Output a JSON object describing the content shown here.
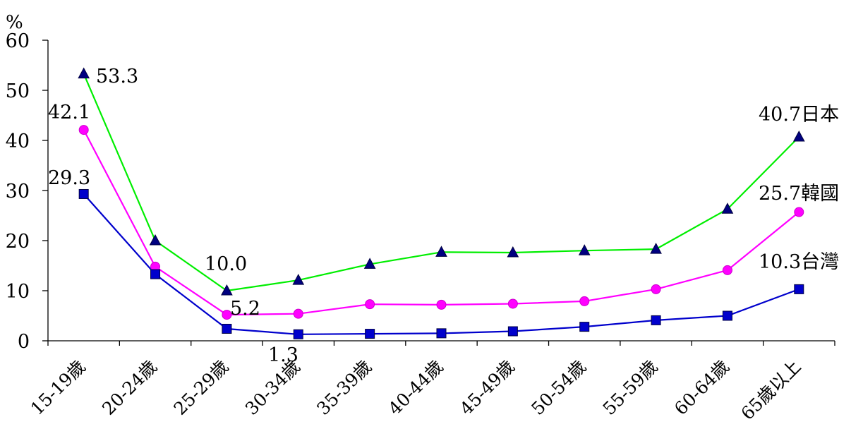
{
  "chart_data": {
    "type": "line",
    "title": "",
    "xlabel": "",
    "ylabel": "",
    "y_unit": "%",
    "ylim": [
      0,
      60
    ],
    "yticks": [
      "0",
      "10",
      "20",
      "30",
      "40",
      "50",
      "60"
    ],
    "categories": [
      "15-19歲",
      "20-24歲",
      "25-29歲",
      "30-34歲",
      "35-39歲",
      "40-44歲",
      "45-49歲",
      "50-54歲",
      "55-59歲",
      "60-64歲",
      "65歲以上"
    ],
    "grid": false,
    "legend": "none",
    "series": [
      {
        "name": "日本",
        "color": "#00ee00",
        "marker": "triangle",
        "marker_color": "#000080",
        "values": [
          53.3,
          20.0,
          10.0,
          12.1,
          15.3,
          17.7,
          17.6,
          18.0,
          18.3,
          26.3,
          40.7
        ]
      },
      {
        "name": "韓國",
        "color": "#ff00ff",
        "marker": "circle",
        "marker_color": "#ff00ff",
        "values": [
          42.1,
          14.8,
          5.2,
          5.4,
          7.3,
          7.2,
          7.4,
          7.9,
          10.3,
          14.1,
          25.7
        ]
      },
      {
        "name": "台灣",
        "color": "#0000cc",
        "marker": "square",
        "marker_color": "#0000cc",
        "values": [
          29.3,
          13.3,
          2.4,
          1.3,
          1.4,
          1.5,
          1.9,
          2.8,
          4.1,
          5.0,
          10.3
        ]
      }
    ],
    "annotations": [
      {
        "text": "53.3"
      },
      {
        "text": "42.1"
      },
      {
        "text": "29.3"
      },
      {
        "text": "10.0"
      },
      {
        "text": "5.2"
      },
      {
        "text": "1.3"
      },
      {
        "text": "40.7日本"
      },
      {
        "text": "25.7韓國"
      },
      {
        "text": "10.3台灣"
      }
    ]
  }
}
